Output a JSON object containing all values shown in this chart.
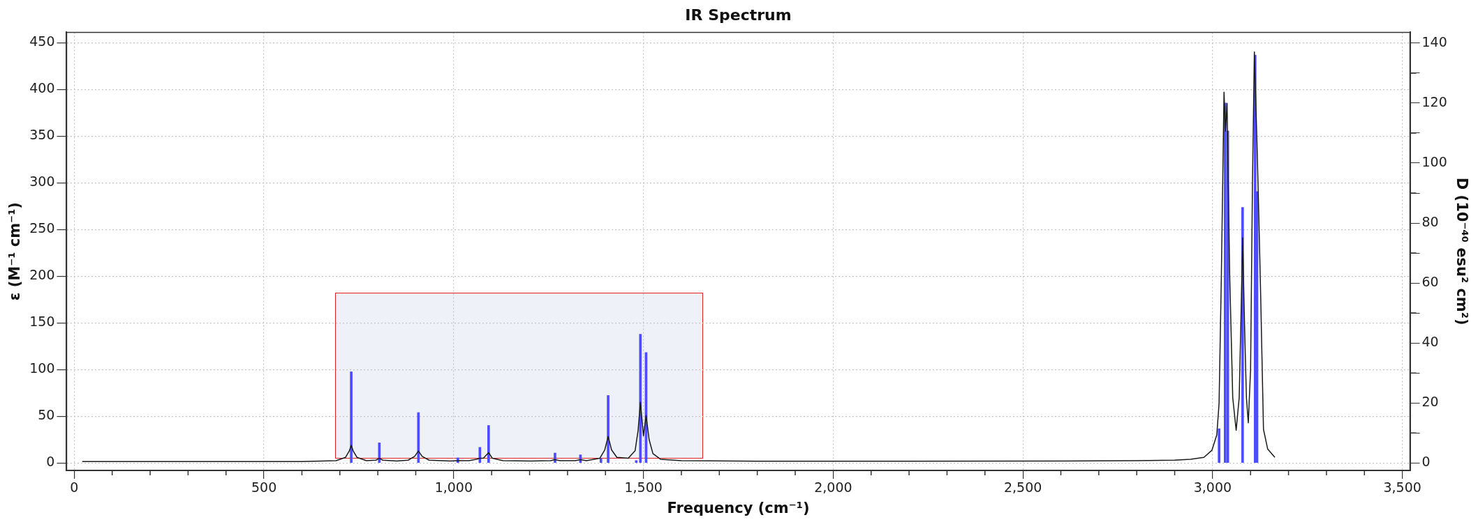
{
  "chart_data": {
    "type": "line",
    "title": "IR Spectrum",
    "xlabel": "Frequency (cm⁻¹)",
    "ylabel": "ε (M⁻¹ cm⁻¹)",
    "y2label": "D (10⁻⁴⁰ esu² cm²)",
    "x": [
      21,
      300,
      600,
      690,
      715,
      725,
      730,
      735,
      745,
      770,
      795,
      804,
      813,
      850,
      880,
      897,
      907,
      917,
      935,
      990,
      1011,
      1040,
      1060,
      1069,
      1078,
      1092,
      1102,
      1130,
      1200,
      1255,
      1267,
      1280,
      1320,
      1334,
      1350,
      1385,
      1398,
      1407,
      1416,
      1430,
      1460,
      1478,
      1486,
      1492,
      1500,
      1507,
      1515,
      1525,
      1545,
      1600,
      1800,
      2200,
      2600,
      2800,
      2900,
      2942,
      2977,
      2998,
      3011,
      3017,
      3023,
      3030,
      3034,
      3038,
      3045,
      3053,
      3062,
      3070,
      3075,
      3079,
      3084,
      3089,
      3094,
      3100,
      3105,
      3110,
      3117,
      3122,
      3127,
      3134,
      3145,
      3164
    ],
    "series": [
      {
        "color": "#1a1a1a",
        "values": [
          1.5,
          1.5,
          1.6,
          2.5,
          6,
          13,
          18.8,
          13,
          6,
          2.5,
          3,
          5,
          3,
          2,
          3,
          7,
          12.8,
          7,
          3,
          2,
          2.5,
          2.5,
          4,
          5,
          5,
          11,
          5,
          2.5,
          2,
          2.5,
          3.5,
          2.5,
          2.5,
          3.5,
          2.5,
          5,
          14,
          28.3,
          14,
          6,
          5,
          13,
          35,
          65,
          29,
          50.7,
          25,
          10,
          4,
          2.5,
          1.8,
          1.8,
          2,
          2.5,
          3,
          4,
          6,
          13.5,
          30,
          64,
          200,
          397,
          355,
          385,
          200,
          70,
          35,
          70,
          160,
          241,
          150,
          70,
          43,
          100,
          300,
          440,
          341,
          260,
          172,
          36,
          15,
          6
        ]
      },
      {
        "type": "bar",
        "axis": "y2",
        "color": "#4d4dff",
        "x": [
          730,
          804,
          907,
          1011,
          1069,
          1092,
          1267,
          1334,
          1388,
          1407,
          1481,
          1492,
          1507,
          3017,
          3033,
          3040,
          3079,
          3112,
          3117
        ],
        "values": [
          30.4,
          6.7,
          16.8,
          1.7,
          5.2,
          12.5,
          3.3,
          2.7,
          1.5,
          22.5,
          0.8,
          42.9,
          36.8,
          11.4,
          120,
          110.7,
          85.2,
          136,
          90.5
        ]
      }
    ],
    "xlim": [
      -20,
      3520
    ],
    "xticks": [
      {
        "value": 0,
        "label": "0"
      },
      {
        "value": 100,
        "label": null
      },
      {
        "value": 200,
        "label": null
      },
      {
        "value": 300,
        "label": null
      },
      {
        "value": 400,
        "label": null
      },
      {
        "value": 500,
        "label": "500"
      },
      {
        "value": 600,
        "label": null
      },
      {
        "value": 700,
        "label": null
      },
      {
        "value": 800,
        "label": null
      },
      {
        "value": 900,
        "label": null
      },
      {
        "value": 1000,
        "label": "1,000"
      },
      {
        "value": 1100,
        "label": null
      },
      {
        "value": 1200,
        "label": null
      },
      {
        "value": 1300,
        "label": null
      },
      {
        "value": 1400,
        "label": null
      },
      {
        "value": 1500,
        "label": "1,500"
      },
      {
        "value": 1600,
        "label": null
      },
      {
        "value": 1700,
        "label": null
      },
      {
        "value": 1800,
        "label": null
      },
      {
        "value": 1900,
        "label": null
      },
      {
        "value": 2000,
        "label": "2,000"
      },
      {
        "value": 2100,
        "label": null
      },
      {
        "value": 2200,
        "label": null
      },
      {
        "value": 2300,
        "label": null
      },
      {
        "value": 2400,
        "label": null
      },
      {
        "value": 2500,
        "label": "2,500"
      },
      {
        "value": 2600,
        "label": null
      },
      {
        "value": 2700,
        "label": null
      },
      {
        "value": 2800,
        "label": null
      },
      {
        "value": 2900,
        "label": null
      },
      {
        "value": 3000,
        "label": "3,000"
      },
      {
        "value": 3100,
        "label": null
      },
      {
        "value": 3200,
        "label": null
      },
      {
        "value": 3300,
        "label": null
      },
      {
        "value": 3400,
        "label": null
      },
      {
        "value": 3500,
        "label": "3,500"
      }
    ],
    "ylim": [
      -8,
      461
    ],
    "yticks": [
      0,
      50,
      100,
      150,
      200,
      250,
      300,
      350,
      400,
      450
    ],
    "y2lim": [
      -2.5,
      143.6
    ],
    "y2ticks": [
      0,
      {
        "value": 10,
        "label": null
      },
      20,
      {
        "value": 30,
        "label": null
      },
      40,
      {
        "value": 50,
        "label": null
      },
      60,
      {
        "value": 70,
        "label": null
      },
      80,
      {
        "value": 90,
        "label": null
      },
      100,
      {
        "value": 110,
        "label": null
      },
      120,
      {
        "value": 130,
        "label": null
      },
      140
    ],
    "grid": true,
    "legend": false,
    "marker": "none",
    "line_style": "solid"
  }
}
